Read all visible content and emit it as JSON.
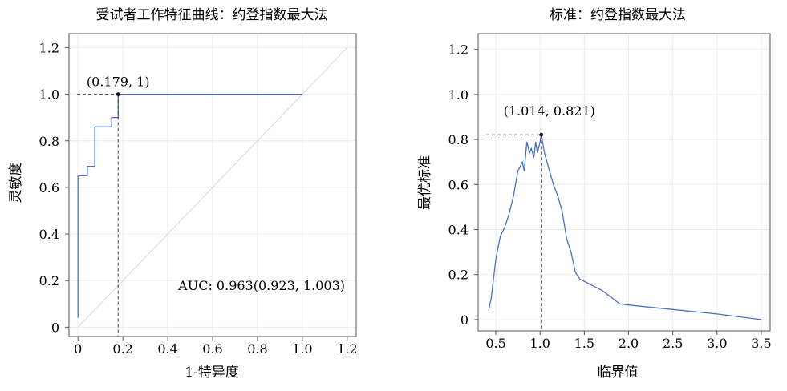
{
  "chart_data": [
    {
      "type": "line",
      "title": "受试者工作特征曲线：约登指数最大法",
      "xlabel": "1-特异度",
      "ylabel": "灵敏度",
      "xlim": [
        -0.04,
        1.24
      ],
      "ylim": [
        -0.04,
        1.26
      ],
      "x_ticks": [
        "0",
        "0.2",
        "0.4",
        "0.6",
        "0.8",
        "1.0",
        "1.2"
      ],
      "y_ticks": [
        "0",
        "0.2",
        "0.4",
        "0.6",
        "0.8",
        "1.0",
        "1.2"
      ],
      "grid": true,
      "series": [
        {
          "color": "#4a72c0",
          "x": [
            0,
            0,
            0.042,
            0.042,
            0.075,
            0.075,
            0.15,
            0.15,
            0.179,
            0.179,
            1.0
          ],
          "y": [
            0.04,
            0.65,
            0.65,
            0.69,
            0.69,
            0.86,
            0.86,
            0.9,
            0.9,
            1.0,
            1.0
          ]
        }
      ],
      "reference_line": {
        "x": [
          0,
          1.2
        ],
        "y": [
          0,
          1.2
        ],
        "color": "#d9d9d9"
      },
      "highlight_point": {
        "x": 0.179,
        "y": 1,
        "label": "(0.179, 1)"
      },
      "annotation": "AUC: 0.963(0.923, 1.003)"
    },
    {
      "type": "line",
      "title": "标准：约登指数最大法",
      "xlabel": "临界值",
      "ylabel": "最优标准",
      "xlim": [
        0.3,
        3.6
      ],
      "ylim": [
        -0.05,
        1.27
      ],
      "x_ticks": [
        "0.5",
        "1.0",
        "1.5",
        "2.0",
        "2.5",
        "3.0",
        "3.5"
      ],
      "y_ticks": [
        "0",
        "0.2",
        "0.4",
        "0.6",
        "0.8",
        "1.0",
        "1.2"
      ],
      "grid": true,
      "series": [
        {
          "color": "#4a72c0",
          "x": [
            0.42,
            0.45,
            0.5,
            0.55,
            0.6,
            0.65,
            0.7,
            0.75,
            0.8,
            0.82,
            0.85,
            0.88,
            0.9,
            0.93,
            0.95,
            0.97,
            1.0,
            1.014,
            1.05,
            1.1,
            1.15,
            1.2,
            1.25,
            1.3,
            1.35,
            1.4,
            1.45,
            1.5,
            1.6,
            1.7,
            1.8,
            1.9,
            2.0,
            2.5,
            3.0,
            3.5
          ],
          "y": [
            0.04,
            0.1,
            0.27,
            0.37,
            0.41,
            0.47,
            0.55,
            0.66,
            0.7,
            0.66,
            0.79,
            0.74,
            0.76,
            0.72,
            0.79,
            0.74,
            0.79,
            0.821,
            0.74,
            0.67,
            0.6,
            0.55,
            0.48,
            0.36,
            0.3,
            0.21,
            0.18,
            0.17,
            0.15,
            0.13,
            0.1,
            0.07,
            0.065,
            0.045,
            0.025,
            0.0
          ]
        }
      ],
      "highlight_point": {
        "x": 1.014,
        "y": 0.821,
        "label": "(1.014, 0.821)"
      }
    }
  ]
}
